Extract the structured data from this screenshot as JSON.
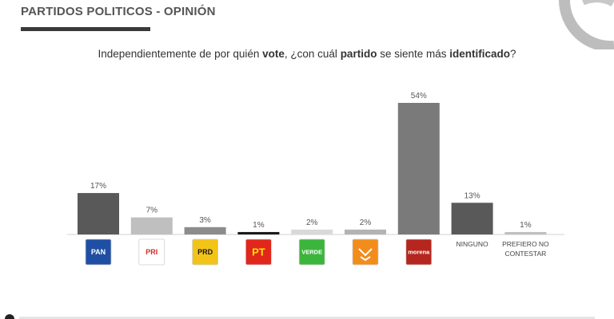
{
  "header": {
    "title": "PARTIDOS POLITICOS - OPINIÓN"
  },
  "question": {
    "part1": "Independientemente de por quién ",
    "bold1": "vote",
    "part2": ", ¿con cuál ",
    "bold2": "partido",
    "part3": " se siente más ",
    "bold3": "identificado",
    "part4": "?"
  },
  "chart_data": {
    "type": "bar",
    "categories": [
      "PAN",
      "PRI",
      "PRD",
      "PT",
      "VERDE",
      "MC",
      "morena",
      "NINGUNO",
      "PREFIERO NO CONTESTAR"
    ],
    "values": [
      17,
      7,
      3,
      1,
      2,
      2,
      54,
      13,
      1
    ],
    "value_labels": [
      "17%",
      "7%",
      "3%",
      "1%",
      "2%",
      "2%",
      "54%",
      "13%",
      "1%"
    ],
    "bar_colors": [
      "#595959",
      "#bfbfbf",
      "#8c8c8c",
      "#1a1a1a",
      "#d9d9d9",
      "#b3b3b3",
      "#7a7a7a",
      "#595959",
      "#bfbfbf"
    ],
    "text_labels": [
      "",
      "",
      "",
      "",
      "",
      "",
      "",
      "NINGUNO",
      "PREFIERO NO\nCONTESTAR"
    ],
    "logos": [
      {
        "name": "pan-logo",
        "text": "PAN",
        "bg": "#1f4fa3",
        "fg": "#ffffff"
      },
      {
        "name": "pri-logo",
        "text": "PRI",
        "bg": "#ffffff",
        "fg": "#d62828"
      },
      {
        "name": "prd-logo",
        "text": "PRD",
        "bg": "#f2c418",
        "fg": "#1a1a1a"
      },
      {
        "name": "pt-logo",
        "text": "PT",
        "bg": "#e1261c",
        "fg": "#ffe100"
      },
      {
        "name": "verde-logo",
        "text": "VERDE",
        "bg": "#3cb53c",
        "fg": "#ffffff"
      },
      {
        "name": "mc-logo",
        "text": "",
        "bg": "#f28c1b",
        "fg": "#ffffff"
      },
      {
        "name": "morena-logo",
        "text": "morena",
        "bg": "#b5261e",
        "fg": "#ffffff"
      }
    ],
    "ylim": [
      0,
      54
    ],
    "xlabel": "",
    "ylabel": ""
  }
}
